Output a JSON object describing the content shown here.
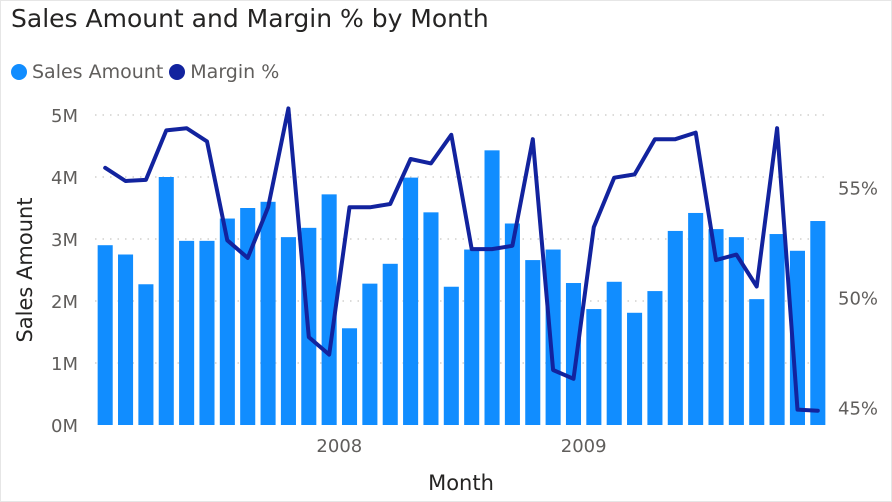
{
  "colors": {
    "sales": "#118dff",
    "margin": "#12239e",
    "grid": "#c8c6c4"
  },
  "chart_data": {
    "type": "bar",
    "title": "Sales Amount and Margin % by Month",
    "legend": [
      {
        "name": "Sales Amount",
        "color_key": "sales"
      },
      {
        "name": "Margin %",
        "color_key": "margin"
      }
    ],
    "legend_placement": "top-left",
    "xlabel": "Month",
    "ylabel": "Sales Amount",
    "x_tick_labels": [
      {
        "label": "2008",
        "index": 12
      },
      {
        "label": "2009",
        "index": 24
      }
    ],
    "y_ticks": [
      "0M",
      "1M",
      "2M",
      "3M",
      "4M",
      "5M"
    ],
    "y_tick_values": [
      0,
      1,
      2,
      3,
      4,
      5
    ],
    "ylim": [
      0,
      5
    ],
    "y2_ticks": [
      "45%",
      "50%",
      "55%"
    ],
    "y2_tick_values": [
      45,
      50,
      55
    ],
    "y2lim": [
      44.2,
      58.3
    ],
    "grid": true,
    "series": [
      {
        "name": "Sales Amount",
        "type": "bar",
        "unit": "M",
        "values": [
          2.9,
          2.75,
          2.27,
          4.0,
          2.97,
          2.97,
          3.33,
          3.5,
          3.6,
          3.03,
          3.18,
          3.72,
          1.56,
          2.28,
          2.6,
          3.99,
          3.43,
          2.23,
          2.83,
          4.43,
          3.25,
          2.66,
          2.83,
          2.29,
          1.87,
          2.31,
          1.81,
          2.16,
          3.13,
          3.42,
          3.16,
          3.03,
          2.03,
          3.08,
          2.81,
          3.29
        ]
      },
      {
        "name": "Margin %",
        "type": "line",
        "unit": "%",
        "axis": "right",
        "values": [
          55.9,
          55.3,
          55.35,
          57.6,
          57.7,
          57.1,
          52.6,
          51.8,
          54.1,
          58.6,
          48.2,
          47.4,
          54.1,
          54.1,
          54.25,
          56.3,
          56.1,
          57.4,
          52.2,
          52.2,
          52.35,
          57.2,
          46.7,
          46.3,
          53.2,
          55.45,
          55.6,
          57.2,
          57.2,
          57.5,
          51.7,
          51.95,
          50.5,
          57.7,
          44.9,
          44.85
        ]
      }
    ]
  }
}
